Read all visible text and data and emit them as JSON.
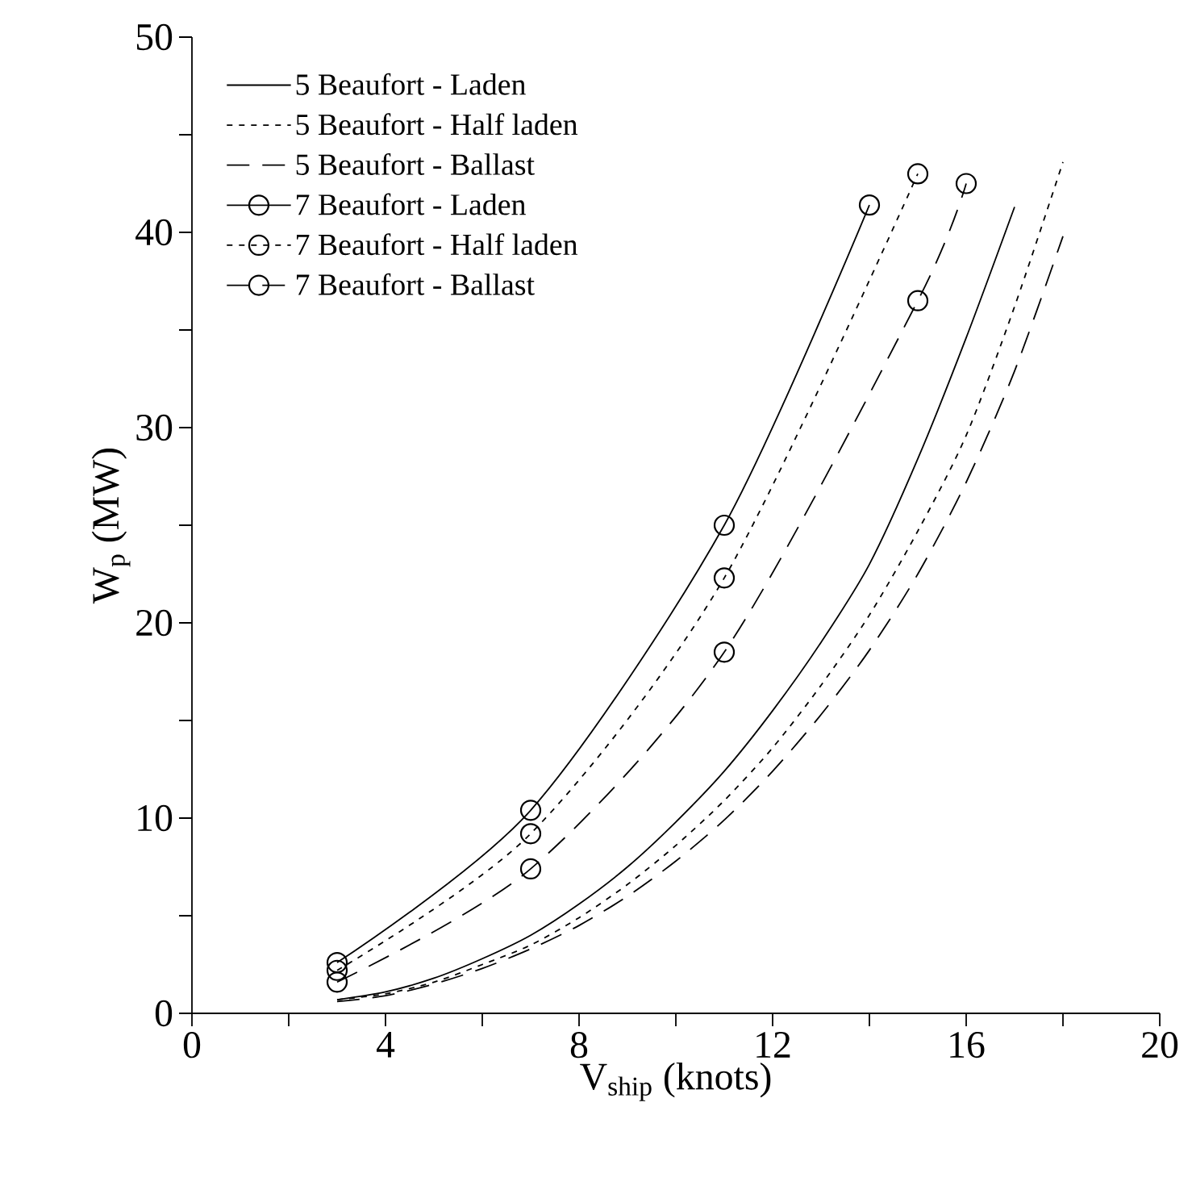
{
  "chart_data": {
    "type": "line",
    "xlabel": "V$_{ship}$ (knots)",
    "ylabel": "W$_{p}$ (MW)",
    "xlim": [
      0,
      20
    ],
    "ylim": [
      0,
      50
    ],
    "xticks": [
      0,
      {
        "value": 2,
        "label": null
      },
      4,
      {
        "value": 6,
        "label": null
      },
      8,
      {
        "value": 10,
        "label": null
      },
      12,
      {
        "value": 14,
        "label": null
      },
      16,
      {
        "value": 18,
        "label": null
      },
      20
    ],
    "yticks": [
      0,
      {
        "value": 5,
        "label": null
      },
      10,
      {
        "value": 15,
        "label": null
      },
      20,
      {
        "value": 25,
        "label": null
      },
      30,
      {
        "value": 35,
        "label": null
      },
      40,
      {
        "value": 45,
        "label": null
      },
      50
    ],
    "legend": "top left",
    "grid": false,
    "series": [
      {
        "name": "5 Beaufort - Laden",
        "color": "#000000",
        "line_style": "solid",
        "marker": "none",
        "x": [
          3,
          4,
          5,
          6,
          7,
          8,
          9,
          10,
          11,
          12,
          13,
          14,
          15,
          16,
          17
        ],
        "values": [
          0.7,
          1.1,
          1.8,
          2.8,
          4.0,
          5.6,
          7.5,
          9.8,
          12.4,
          15.5,
          19.0,
          23.0,
          28.4,
          34.6,
          41.3
        ]
      },
      {
        "name": "5 Beaufort - Half laden",
        "color": "#000000",
        "line_style": "dotted",
        "marker": "none",
        "x": [
          3,
          4,
          5,
          6,
          7,
          8,
          9,
          10,
          11,
          12,
          13,
          14,
          15,
          16,
          17,
          18
        ],
        "values": [
          0.7,
          1.0,
          1.6,
          2.5,
          3.5,
          4.9,
          6.6,
          8.6,
          10.9,
          13.6,
          16.8,
          20.4,
          24.7,
          29.6,
          36.2,
          43.6
        ]
      },
      {
        "name": "5 Beaufort - Ballast",
        "color": "#000000",
        "line_style": "dashed",
        "marker": "none",
        "x": [
          3,
          4,
          5,
          6,
          7,
          8,
          9,
          10,
          11,
          12,
          13,
          14,
          15,
          16,
          17,
          18
        ],
        "values": [
          0.6,
          0.9,
          1.5,
          2.3,
          3.3,
          4.5,
          6.0,
          7.8,
          9.9,
          12.4,
          15.3,
          18.6,
          22.5,
          27.2,
          32.9,
          39.8
        ]
      },
      {
        "name": "7 Beaufort - Laden",
        "color": "#000000",
        "line_style": "solid",
        "marker": "circle",
        "x": [
          3,
          7,
          11,
          14
        ],
        "values": [
          2.6,
          10.4,
          25.0,
          41.4
        ]
      },
      {
        "name": "7 Beaufort - Half laden",
        "color": "#000000",
        "line_style": "dotted",
        "marker": "circle",
        "x": [
          3,
          7,
          11,
          15
        ],
        "values": [
          2.2,
          9.2,
          22.3,
          43.0
        ]
      },
      {
        "name": "7 Beaufort - Ballast",
        "color": "#000000",
        "line_style": "dashed",
        "marker": "circle",
        "x": [
          3,
          7,
          11,
          15,
          16
        ],
        "values": [
          1.6,
          7.4,
          18.5,
          36.5,
          42.5
        ]
      }
    ]
  }
}
